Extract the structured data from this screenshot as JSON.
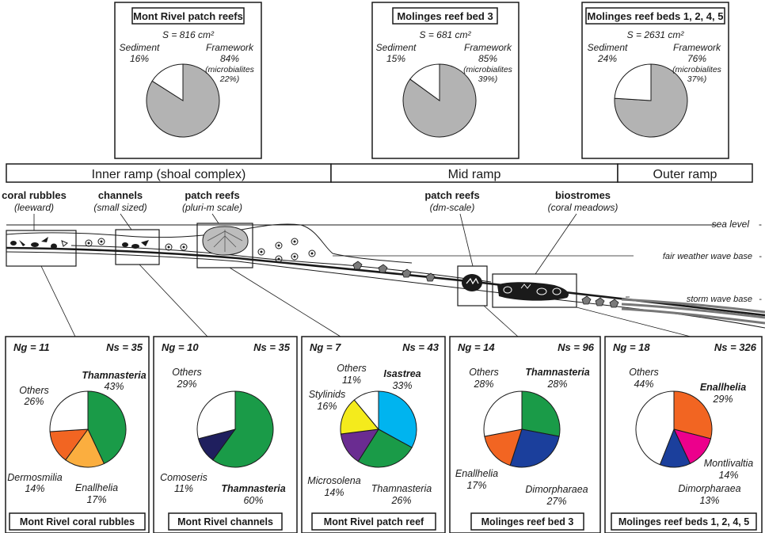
{
  "top_panels": [
    {
      "title": "Mont Rivel patch reefs",
      "area": "S = 816 cm²",
      "sediment_label": "Sediment",
      "sediment_pct": "16%",
      "sediment": 16,
      "framework_label": "Framework",
      "framework_pct": "84%",
      "framework": 84,
      "microbialites": "(microbialites",
      "microbialites_pct": "22%)"
    },
    {
      "title": "Molinges reef bed 3",
      "area": "S = 681 cm²",
      "sediment_label": "Sediment",
      "sediment_pct": "15%",
      "sediment": 15,
      "framework_label": "Framework",
      "framework_pct": "85%",
      "framework": 85,
      "microbialites": "(microbialites",
      "microbialites_pct": "39%)"
    },
    {
      "title": "Molinges reef beds 1, 2, 4, 5",
      "area": "S = 2631 cm²",
      "sediment_label": "Sediment",
      "sediment_pct": "24%",
      "sediment": 24,
      "framework_label": "Framework",
      "framework_pct": "76%",
      "framework": 76,
      "microbialites": "(microbialites",
      "microbialites_pct": "37%)"
    }
  ],
  "ramp_zones": [
    "Inner ramp (shoal complex)",
    "Mid ramp",
    "Outer ramp"
  ],
  "facies": [
    {
      "name": "coral rubbles",
      "detail": "(leeward)"
    },
    {
      "name": "channels",
      "detail": "(small sized)"
    },
    {
      "name": "patch reefs",
      "detail": "(pluri-m scale)"
    },
    {
      "name": "patch reefs",
      "detail": "(dm-scale)"
    },
    {
      "name": "biostromes",
      "detail": "(coral meadows)"
    }
  ],
  "levels": {
    "sea_level": "sea level",
    "fair_weather": "fair weather wave base",
    "storm": "storm wave base"
  },
  "colors": {
    "framework_grey": "#b3b3b3",
    "green": "#1a9b48",
    "orange": "#f26522",
    "light_orange": "#fbae3f",
    "navy": "#1f1f5e",
    "blue": "#1b3f9c",
    "cyan": "#00b4ef",
    "yellow": "#f4eb1c",
    "purple": "#6a2c91",
    "magenta": "#ec008c"
  },
  "bottom_panels": [
    {
      "ng": "Ng = 11",
      "ns": "Ns = 35",
      "caption": "Mont Rivel coral rubbles",
      "slices": [
        {
          "label": "Thamnasteria",
          "pct": "43%",
          "value": 43,
          "color": "#1a9b48",
          "bold": true
        },
        {
          "label": "Enallhelia",
          "pct": "17%",
          "value": 17,
          "color": "#fbae3f",
          "bold": false
        },
        {
          "label": "Dermosmilia",
          "pct": "14%",
          "value": 14,
          "color": "#f26522",
          "bold": false
        },
        {
          "label": "Others",
          "pct": "26%",
          "value": 26,
          "color": "#ffffff",
          "bold": false
        }
      ]
    },
    {
      "ng": "Ng = 10",
      "ns": "Ns = 35",
      "caption": "Mont Rivel channels",
      "slices": [
        {
          "label": "Thamnasteria",
          "pct": "60%",
          "value": 60,
          "color": "#1a9b48",
          "bold": true
        },
        {
          "label": "Comoseris",
          "pct": "11%",
          "value": 11,
          "color": "#1f1f5e",
          "bold": false
        },
        {
          "label": "Others",
          "pct": "29%",
          "value": 29,
          "color": "#ffffff",
          "bold": false
        }
      ]
    },
    {
      "ng": "Ng = 7",
      "ns": "Ns = 43",
      "caption": "Mont Rivel patch reef",
      "slices": [
        {
          "label": "Isastrea",
          "pct": "33%",
          "value": 33,
          "color": "#00b4ef",
          "bold": true
        },
        {
          "label": "Thamnasteria",
          "pct": "26%",
          "value": 26,
          "color": "#1a9b48",
          "bold": false
        },
        {
          "label": "Microsolena",
          "pct": "14%",
          "value": 14,
          "color": "#6a2c91",
          "bold": false
        },
        {
          "label": "Stylinids",
          "pct": "16%",
          "value": 16,
          "color": "#f4eb1c",
          "bold": false
        },
        {
          "label": "Others",
          "pct": "11%",
          "value": 11,
          "color": "#ffffff",
          "bold": false
        }
      ]
    },
    {
      "ng": "Ng = 14",
      "ns": "Ns = 96",
      "caption": "Molinges reef bed 3",
      "slices": [
        {
          "label": "Thamnasteria",
          "pct": "28%",
          "value": 28,
          "color": "#1a9b48",
          "bold": true
        },
        {
          "label": "Dimorpharaea",
          "pct": "27%",
          "value": 27,
          "color": "#1b3f9c",
          "bold": false
        },
        {
          "label": "Enallhelia",
          "pct": "17%",
          "value": 17,
          "color": "#f26522",
          "bold": false
        },
        {
          "label": "Others",
          "pct": "28%",
          "value": 28,
          "color": "#ffffff",
          "bold": false
        }
      ]
    },
    {
      "ng": "Ng = 18",
      "ns": "Ns = 326",
      "caption": "Molinges reef beds 1, 2, 4, 5",
      "slices": [
        {
          "label": "Enallhelia",
          "pct": "29%",
          "value": 29,
          "color": "#f26522",
          "bold": true
        },
        {
          "label": "Montlivaltia",
          "pct": "14%",
          "value": 14,
          "color": "#ec008c",
          "bold": false
        },
        {
          "label": "Dimorpharaea",
          "pct": "13%",
          "value": 13,
          "color": "#1b3f9c",
          "bold": false
        },
        {
          "label": "Others",
          "pct": "44%",
          "value": 44,
          "color": "#ffffff",
          "bold": false
        }
      ]
    }
  ]
}
